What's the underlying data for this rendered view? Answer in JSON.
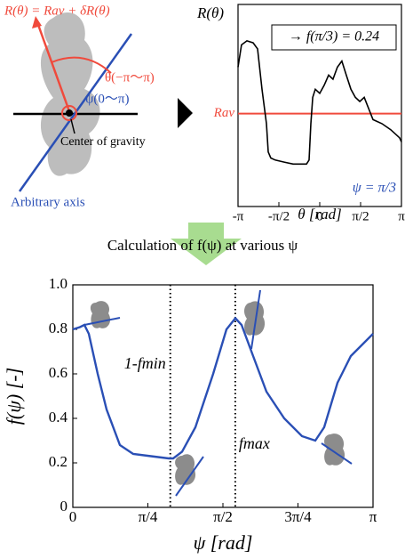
{
  "diagram": {
    "equation": "R(θ) = Rav + δR(θ)",
    "theta_range": "θ(−π〜π)",
    "psi_range": "ψ(0〜π)",
    "center": "Center of gravity",
    "axis": "Arbitrary axis"
  },
  "arrow_text": "Calculation of f(ψ) at various ψ",
  "chart_data": [
    {
      "type": "line",
      "ylabel": "R(θ)",
      "xlabel": "θ [rad]",
      "annotation": "→ f(π/3) = 0.24",
      "inset_label": "ψ = π/3",
      "xlim": [
        -3.1416,
        3.1416
      ],
      "ylim": [
        0,
        1
      ],
      "xticks": [
        {
          "value": -3.1416,
          "label": "-π"
        },
        {
          "value": -1.5708,
          "label": "-π/2"
        },
        0,
        {
          "value": 1.5708,
          "label": "π/2"
        },
        {
          "value": 3.1416,
          "label": "π"
        }
      ],
      "hline": {
        "value": 0.46,
        "label": "Rav",
        "color": "#f04a3c"
      },
      "x": [
        -3.14,
        -3.01,
        -2.8,
        -2.56,
        -2.39,
        -2.22,
        -2.05,
        -1.98,
        -1.88,
        -1.71,
        -1.37,
        -1.02,
        -0.51,
        -0.41,
        -0.34,
        -0.27,
        -0.17,
        0,
        0.17,
        0.34,
        0.51,
        0.68,
        0.85,
        1.02,
        1.2,
        1.37,
        1.54,
        1.71,
        2.05,
        2.39,
        2.73,
        3.07,
        3.14
      ],
      "series": [
        {
          "color": "#000000",
          "values": [
            0.69,
            0.8,
            0.82,
            0.81,
            0.78,
            0.58,
            0.41,
            0.27,
            0.24,
            0.23,
            0.22,
            0.21,
            0.21,
            0.23,
            0.41,
            0.54,
            0.58,
            0.56,
            0.6,
            0.65,
            0.63,
            0.69,
            0.72,
            0.65,
            0.58,
            0.54,
            0.52,
            0.54,
            0.43,
            0.41,
            0.38,
            0.34,
            0.32
          ]
        }
      ]
    },
    {
      "type": "line",
      "ylabel": "f(ψ) [-]",
      "xlabel": "ψ [rad]",
      "xlim": [
        0,
        3.1416
      ],
      "ylim": [
        0,
        1
      ],
      "xticks": [
        0,
        {
          "value": 0.7854,
          "label": "π/4"
        },
        {
          "value": 1.5708,
          "label": "π/2"
        },
        {
          "value": 2.3562,
          "label": "3π/4"
        },
        {
          "value": 3.1416,
          "label": "π"
        }
      ],
      "yticks": [
        0,
        0.2,
        0.4,
        0.6,
        0.8,
        {
          "value": 1,
          "label": "1.0"
        }
      ],
      "vlines": [
        {
          "value": 1.02,
          "label": "1-fmin"
        },
        {
          "value": 1.7,
          "label": "fmax"
        }
      ],
      "x": [
        0,
        0.074,
        0.121,
        0.167,
        0.26,
        0.353,
        0.493,
        0.632,
        0.818,
        1.004,
        1.05,
        1.143,
        1.283,
        1.469,
        1.608,
        1.701,
        1.766,
        1.887,
        2.026,
        2.212,
        2.398,
        2.537,
        2.63,
        2.77,
        2.909,
        3.049,
        3.1416
      ],
      "series": [
        {
          "color": "#2a4fb5",
          "values": [
            0.8,
            0.81,
            0.82,
            0.78,
            0.6,
            0.44,
            0.28,
            0.24,
            0.23,
            0.22,
            0.22,
            0.25,
            0.36,
            0.6,
            0.8,
            0.85,
            0.82,
            0.68,
            0.52,
            0.4,
            0.32,
            0.3,
            0.36,
            0.56,
            0.68,
            0.74,
            0.78
          ]
        }
      ]
    }
  ]
}
